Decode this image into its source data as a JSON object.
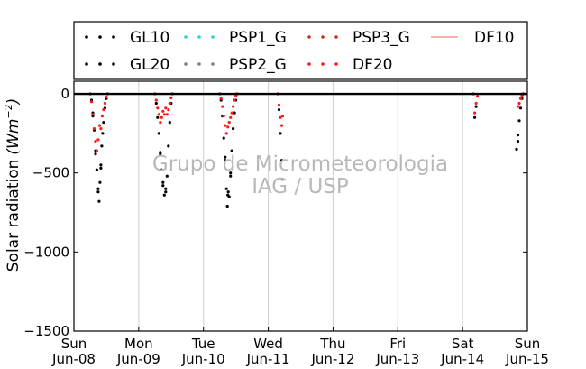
{
  "chart_data": {
    "type": "scatter",
    "ylabel": "Solar radiation",
    "ylabel_unit_base": "Wm",
    "ylabel_unit_exp": "−2",
    "ylim": [
      -1500,
      80
    ],
    "yticks": [
      0,
      -500,
      -1000,
      -1500
    ],
    "ytick_labels": [
      "0",
      "−500",
      "−1000",
      "−1500"
    ],
    "xlim": [
      "2014-06-08T00:00",
      "2014-06-15T00:00"
    ],
    "x_ticks": [
      {
        "date": "2014-06-08",
        "day": "Sun",
        "label": "Jun-08"
      },
      {
        "date": "2014-06-09",
        "day": "Mon",
        "label": "Jun-09"
      },
      {
        "date": "2014-06-10",
        "day": "Tue",
        "label": "Jun-10"
      },
      {
        "date": "2014-06-11",
        "day": "Wed",
        "label": "Jun-11"
      },
      {
        "date": "2014-06-12",
        "day": "Thu",
        "label": "Jun-12"
      },
      {
        "date": "2014-06-13",
        "day": "Fri",
        "label": "Jun-13"
      },
      {
        "date": "2014-06-14",
        "day": "Sat",
        "label": "Jun-14"
      },
      {
        "date": "2014-06-15",
        "day": "Sun",
        "label": "Jun-15"
      }
    ],
    "grid": "vertical",
    "legend_position": "top",
    "watermark": [
      "Grupo de Micrometeorologia",
      "IAG / USP"
    ],
    "series": [
      {
        "name": "GL10",
        "marker": "dot",
        "color": "#000000",
        "points": [
          [
            "2014-06-08T06:00",
            0
          ],
          [
            "2014-06-08T06:30",
            -40
          ],
          [
            "2014-06-08T07:00",
            -120
          ],
          [
            "2014-06-08T07:30",
            -230
          ],
          [
            "2014-06-08T08:00",
            -360
          ],
          [
            "2014-06-08T08:30",
            -480
          ],
          [
            "2014-06-08T09:00",
            -620
          ],
          [
            "2014-06-08T09:20",
            -680
          ],
          [
            "2014-06-08T09:40",
            -560
          ],
          [
            "2014-06-08T10:00",
            -470
          ],
          [
            "2014-06-08T10:20",
            -330
          ],
          [
            "2014-06-08T10:40",
            -250
          ],
          [
            "2014-06-08T11:00",
            -180
          ],
          [
            "2014-06-08T11:30",
            -90
          ],
          [
            "2014-06-08T12:00",
            -30
          ],
          [
            "2014-06-08T12:30",
            0
          ],
          [
            "2014-06-09T06:00",
            0
          ],
          [
            "2014-06-09T06:30",
            -60
          ],
          [
            "2014-06-09T07:00",
            -150
          ],
          [
            "2014-06-09T07:30",
            -250
          ],
          [
            "2014-06-09T08:00",
            -380
          ],
          [
            "2014-06-09T08:30",
            -480
          ],
          [
            "2014-06-09T09:00",
            -580
          ],
          [
            "2014-06-09T09:30",
            -640
          ],
          [
            "2014-06-09T10:00",
            -620
          ],
          [
            "2014-06-09T10:30",
            -520
          ],
          [
            "2014-06-09T11:00",
            -330
          ],
          [
            "2014-06-09T11:30",
            -180
          ],
          [
            "2014-06-09T12:00",
            -60
          ],
          [
            "2014-06-09T12:30",
            0
          ],
          [
            "2014-06-10T06:00",
            0
          ],
          [
            "2014-06-10T06:30",
            -40
          ],
          [
            "2014-06-10T07:00",
            -140
          ],
          [
            "2014-06-10T07:30",
            -280
          ],
          [
            "2014-06-10T08:00",
            -420
          ],
          [
            "2014-06-10T08:30",
            -600
          ],
          [
            "2014-06-10T08:50",
            -710
          ],
          [
            "2014-06-10T09:10",
            -620
          ],
          [
            "2014-06-10T09:30",
            -650
          ],
          [
            "2014-06-10T10:00",
            -520
          ],
          [
            "2014-06-10T10:30",
            -360
          ],
          [
            "2014-06-10T11:00",
            -220
          ],
          [
            "2014-06-10T11:30",
            -120
          ],
          [
            "2014-06-10T12:00",
            -40
          ],
          [
            "2014-06-10T12:30",
            0
          ],
          [
            "2014-06-11T03:30",
            0
          ],
          [
            "2014-06-11T04:00",
            -100
          ],
          [
            "2014-06-11T04:30",
            -250
          ],
          [
            "2014-06-11T05:00",
            -420
          ],
          [
            "2014-06-11T05:20",
            -540
          ],
          [
            "2014-06-14T04:00",
            0
          ],
          [
            "2014-06-14T04:30",
            -150
          ],
          [
            "2014-06-14T05:00",
            -80
          ],
          [
            "2014-06-14T20:00",
            -350
          ],
          [
            "2014-06-14T20:30",
            -260
          ],
          [
            "2014-06-14T21:00",
            -170
          ],
          [
            "2014-06-14T21:30",
            -90
          ],
          [
            "2014-06-14T22:00",
            -30
          ],
          [
            "2014-06-14T22:30",
            0
          ]
        ]
      },
      {
        "name": "GL20",
        "marker": "dot",
        "color": "#000000",
        "points": [
          [
            "2014-06-08T07:00",
            -140
          ],
          [
            "2014-06-08T08:00",
            -380
          ],
          [
            "2014-06-08T09:00",
            -600
          ],
          [
            "2014-06-08T10:00",
            -450
          ],
          [
            "2014-06-09T08:00",
            -370
          ],
          [
            "2014-06-09T09:00",
            -560
          ],
          [
            "2014-06-09T10:00",
            -600
          ],
          [
            "2014-06-10T08:00",
            -400
          ],
          [
            "2014-06-10T09:00",
            -640
          ],
          [
            "2014-06-10T10:00",
            -500
          ],
          [
            "2014-06-14T20:30",
            -300
          ]
        ]
      },
      {
        "name": "PSP1_G",
        "marker": "dot",
        "color": "#29d3d3",
        "points": []
      },
      {
        "name": "PSP2_G",
        "marker": "dot",
        "color": "#808080",
        "points": []
      },
      {
        "name": "PSP3_G",
        "marker": "dot",
        "color": "#c0391b",
        "points": []
      },
      {
        "name": "DF20",
        "marker": "dot",
        "color": "#ff1a1a",
        "points": [
          [
            "2014-06-08T06:00",
            0
          ],
          [
            "2014-06-08T06:30",
            -50
          ],
          [
            "2014-06-08T07:00",
            -130
          ],
          [
            "2014-06-08T07:30",
            -220
          ],
          [
            "2014-06-08T08:00",
            -300
          ],
          [
            "2014-06-08T08:30",
            -360
          ],
          [
            "2014-06-08T09:00",
            -290
          ],
          [
            "2014-06-08T09:30",
            -200
          ],
          [
            "2014-06-08T10:00",
            -220
          ],
          [
            "2014-06-08T10:30",
            -140
          ],
          [
            "2014-06-08T11:00",
            -100
          ],
          [
            "2014-06-08T11:30",
            -60
          ],
          [
            "2014-06-08T12:00",
            -20
          ],
          [
            "2014-06-08T12:30",
            0
          ],
          [
            "2014-06-09T06:00",
            0
          ],
          [
            "2014-06-09T06:30",
            -40
          ],
          [
            "2014-06-09T07:00",
            -90
          ],
          [
            "2014-06-09T07:30",
            -130
          ],
          [
            "2014-06-09T08:00",
            -180
          ],
          [
            "2014-06-09T08:30",
            -150
          ],
          [
            "2014-06-09T09:00",
            -110
          ],
          [
            "2014-06-09T09:30",
            -130
          ],
          [
            "2014-06-09T10:00",
            -90
          ],
          [
            "2014-06-09T10:30",
            -130
          ],
          [
            "2014-06-09T11:00",
            -100
          ],
          [
            "2014-06-09T11:30",
            -60
          ],
          [
            "2014-06-09T12:00",
            -25
          ],
          [
            "2014-06-09T12:30",
            0
          ],
          [
            "2014-06-10T06:00",
            0
          ],
          [
            "2014-06-10T06:30",
            -30
          ],
          [
            "2014-06-10T07:00",
            -80
          ],
          [
            "2014-06-10T07:30",
            -140
          ],
          [
            "2014-06-10T08:00",
            -200
          ],
          [
            "2014-06-10T08:30",
            -250
          ],
          [
            "2014-06-10T09:00",
            -210
          ],
          [
            "2014-06-10T09:30",
            -180
          ],
          [
            "2014-06-10T10:00",
            -150
          ],
          [
            "2014-06-10T10:30",
            -120
          ],
          [
            "2014-06-10T11:00",
            -80
          ],
          [
            "2014-06-10T11:30",
            -40
          ],
          [
            "2014-06-10T12:00",
            -10
          ],
          [
            "2014-06-10T12:30",
            0
          ],
          [
            "2014-06-11T03:30",
            0
          ],
          [
            "2014-06-11T04:00",
            -70
          ],
          [
            "2014-06-11T04:30",
            -150
          ],
          [
            "2014-06-11T05:00",
            -200
          ],
          [
            "2014-06-11T05:20",
            -140
          ],
          [
            "2014-06-14T04:00",
            0
          ],
          [
            "2014-06-14T04:30",
            -120
          ],
          [
            "2014-06-14T05:00",
            -60
          ],
          [
            "2014-06-14T05:30",
            -15
          ],
          [
            "2014-06-14T20:30",
            -80
          ],
          [
            "2014-06-14T21:00",
            -60
          ],
          [
            "2014-06-14T21:30",
            -30
          ],
          [
            "2014-06-14T22:00",
            -10
          ]
        ]
      },
      {
        "name": "DF10",
        "marker": "line",
        "color": "#f08080",
        "points": [
          [
            "2014-06-08T00:00",
            0
          ],
          [
            "2014-06-15T00:00",
            0
          ]
        ]
      }
    ],
    "legend_order": [
      "GL10",
      "PSP1_G",
      "PSP3_G",
      "DF10",
      "GL20",
      "PSP2_G",
      "DF20"
    ]
  }
}
